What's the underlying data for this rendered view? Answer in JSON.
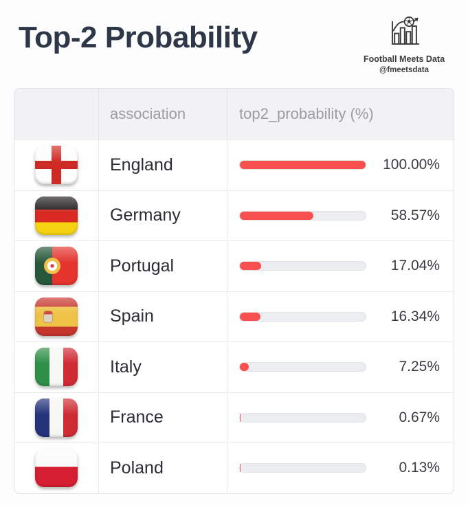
{
  "header": {
    "title": "Top-2 Probability",
    "brand": {
      "name": "Football Meets Data",
      "handle": "@fmeetsdata"
    }
  },
  "table": {
    "columns": [
      "association",
      "top2_probability (%)"
    ],
    "rows": [
      {
        "flag": "england",
        "association": "England",
        "value": 100.0,
        "display": "100.00%"
      },
      {
        "flag": "germany",
        "association": "Germany",
        "value": 58.57,
        "display": "58.57%"
      },
      {
        "flag": "portugal",
        "association": "Portugal",
        "value": 17.04,
        "display": "17.04%"
      },
      {
        "flag": "spain",
        "association": "Spain",
        "value": 16.34,
        "display": "16.34%"
      },
      {
        "flag": "italy",
        "association": "Italy",
        "value": 7.25,
        "display": "7.25%"
      },
      {
        "flag": "france",
        "association": "France",
        "value": 0.67,
        "display": "0.67%"
      },
      {
        "flag": "poland",
        "association": "Poland",
        "value": 0.13,
        "display": "0.13%"
      }
    ]
  },
  "colors": {
    "bar_fill": "#f8504e",
    "bar_track": "#ecedf1",
    "title_text": "#2d3748",
    "header_cell_text": "#9b9ca4",
    "header_row_bg": "#f2f2f5"
  },
  "chart_data": {
    "type": "bar",
    "title": "Top-2 Probability",
    "categories": [
      "England",
      "Germany",
      "Portugal",
      "Spain",
      "Italy",
      "France",
      "Poland"
    ],
    "values": [
      100.0,
      58.57,
      17.04,
      16.34,
      7.25,
      0.67,
      0.13
    ],
    "value_labels": [
      "100.00%",
      "58.57%",
      "17.04%",
      "16.34%",
      "7.25%",
      "0.67%",
      "0.13%"
    ],
    "xlabel": "association",
    "ylabel": "top2_probability (%)",
    "xlim": [
      0,
      100
    ],
    "orientation": "horizontal",
    "grid": false,
    "legend": false
  }
}
